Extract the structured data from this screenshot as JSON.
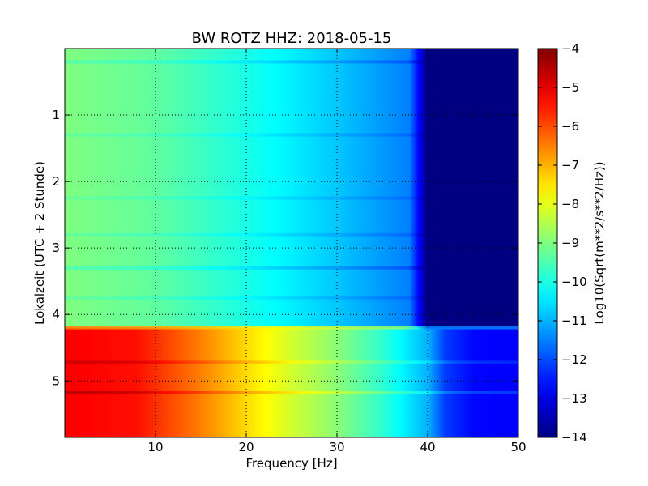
{
  "chart_data": {
    "type": "heatmap",
    "title": "BW ROTZ HHZ: 2018-05-15",
    "xlabel": "Frequency [Hz]",
    "ylabel": "Lokalzeit (UTC + 2 Stunde)",
    "xlim": [
      0,
      50
    ],
    "ylim": [
      5.85,
      0
    ],
    "x_ticks": [
      10,
      20,
      30,
      40,
      50
    ],
    "y_ticks": [
      1,
      2,
      3,
      4,
      5
    ],
    "grid": true,
    "colorbar": {
      "label": "Log10(Sqrt(m**2/s**2/Hz))",
      "colormap": "jet",
      "range": [
        -14,
        -4
      ],
      "ticks": [
        -4,
        -5,
        -6,
        -7,
        -8,
        -9,
        -10,
        -11,
        -12,
        -13,
        -14
      ]
    },
    "segments": [
      {
        "y_range": [
          0,
          4.2
        ],
        "spectrum": [
          [
            0,
            -9.0
          ],
          [
            10,
            -9.3
          ],
          [
            20,
            -10.0
          ],
          [
            30,
            -10.8
          ],
          [
            38,
            -11.5
          ],
          [
            40,
            -14.0
          ],
          [
            50,
            -14.0
          ]
        ]
      },
      {
        "y_range": [
          4.2,
          5.85
        ],
        "spectrum": [
          [
            0,
            -5.2
          ],
          [
            8,
            -5.4
          ],
          [
            15,
            -6.5
          ],
          [
            20,
            -7.4
          ],
          [
            25,
            -8.2
          ],
          [
            30,
            -8.9
          ],
          [
            35,
            -9.8
          ],
          [
            40,
            -11.0
          ],
          [
            42,
            -12.2
          ],
          [
            45,
            -12.7
          ],
          [
            50,
            -12.8
          ]
        ]
      }
    ],
    "bands": [
      {
        "y": 0.2,
        "delta": -0.5,
        "f_max": 42
      },
      {
        "y": 1.3,
        "delta": -0.3,
        "f_max": 40
      },
      {
        "y": 2.25,
        "delta": -0.3,
        "f_max": 40
      },
      {
        "y": 2.8,
        "delta": -0.3,
        "f_max": 40
      },
      {
        "y": 3.3,
        "delta": -0.5,
        "f_max": 42
      },
      {
        "y": 3.75,
        "delta": -0.3,
        "f_max": 40
      },
      {
        "y": 4.2,
        "delta": 2.5,
        "f_max": 50
      },
      {
        "y": 4.72,
        "delta": 0.5,
        "f_max": 50
      },
      {
        "y": 5.18,
        "delta": 0.7,
        "f_max": 50
      }
    ]
  }
}
